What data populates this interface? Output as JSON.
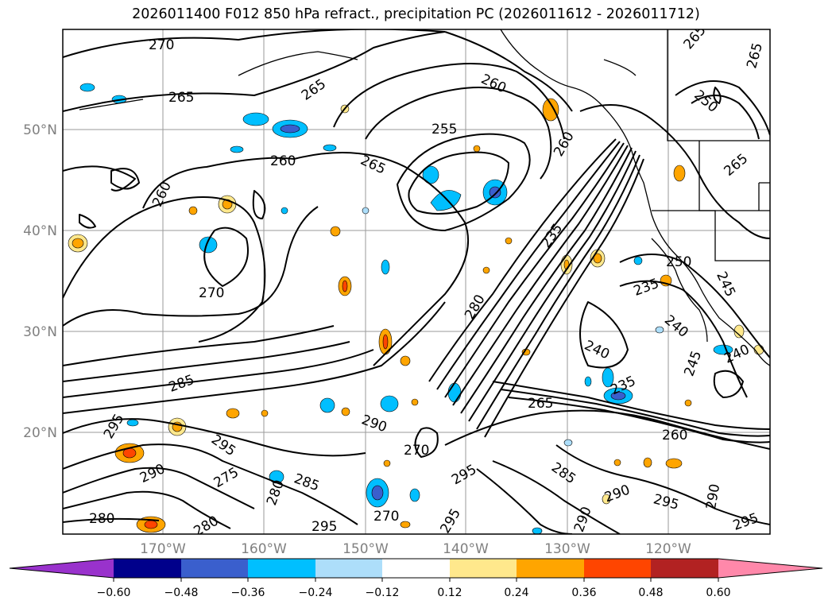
{
  "title": "2026011400 F012 850 hPa refract., precipitation PC (2026011612 - 2026011712)",
  "map": {
    "lat_labels": [
      "50°N",
      "40°N",
      "30°N",
      "20°N"
    ],
    "lon_labels": [
      "170°W",
      "160°W",
      "150°W",
      "140°W",
      "130°W",
      "120°W"
    ],
    "contour_labels": [
      {
        "text": "270"
      },
      {
        "text": "265"
      },
      {
        "text": "265"
      },
      {
        "text": "260"
      },
      {
        "text": "260"
      },
      {
        "text": "255"
      },
      {
        "text": "265"
      },
      {
        "text": "260"
      },
      {
        "text": "265"
      },
      {
        "text": "260"
      },
      {
        "text": "265"
      },
      {
        "text": "250"
      },
      {
        "text": "265"
      },
      {
        "text": "270"
      },
      {
        "text": "280"
      },
      {
        "text": "235"
      },
      {
        "text": "250"
      },
      {
        "text": "235"
      },
      {
        "text": "245"
      },
      {
        "text": "240"
      },
      {
        "text": "240"
      },
      {
        "text": "235"
      },
      {
        "text": "245"
      },
      {
        "text": "240"
      },
      {
        "text": "285"
      },
      {
        "text": "295"
      },
      {
        "text": "290"
      },
      {
        "text": "295"
      },
      {
        "text": "275"
      },
      {
        "text": "290"
      },
      {
        "text": "280"
      },
      {
        "text": "285"
      },
      {
        "text": "265"
      },
      {
        "text": "270"
      },
      {
        "text": "295"
      },
      {
        "text": "285"
      },
      {
        "text": "290"
      },
      {
        "text": "295"
      },
      {
        "text": "290"
      },
      {
        "text": "295"
      },
      {
        "text": "290"
      },
      {
        "text": "280"
      },
      {
        "text": "295"
      },
      {
        "text": "270"
      },
      {
        "text": "295"
      },
      {
        "text": "280"
      },
      {
        "text": "260"
      }
    ]
  },
  "colorbar": {
    "tick_labels": [
      "−0.60",
      "−0.48",
      "−0.36",
      "−0.24",
      "−0.12",
      "0.12",
      "0.24",
      "0.36",
      "0.48",
      "0.60"
    ],
    "colors": [
      "#9932CC",
      "#00008B",
      "#3A5FCD",
      "#00BFFF",
      "#ADDEFA",
      "#FFFFFF",
      "#FFE88C",
      "#FFA500",
      "#FF4500",
      "#B22222",
      "#FF88AA"
    ]
  }
}
